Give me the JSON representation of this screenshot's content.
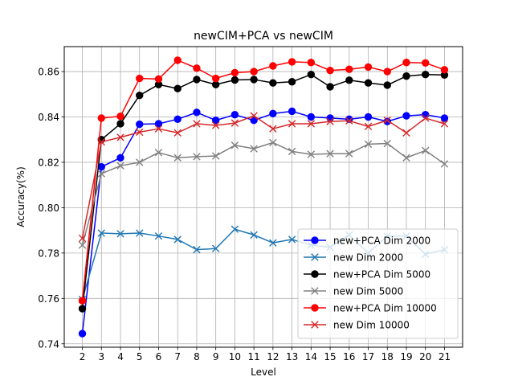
{
  "chart_data": {
    "type": "line",
    "title": "newCIM+PCA vs newCIM",
    "xlabel": "Level",
    "ylabel": "Accuracy(%)",
    "x": [
      2,
      3,
      4,
      5,
      6,
      7,
      8,
      9,
      10,
      11,
      12,
      13,
      14,
      15,
      16,
      17,
      18,
      19,
      20,
      21
    ],
    "xlim": [
      1.05,
      21.95
    ],
    "ylim": [
      0.7385,
      0.871
    ],
    "yticks": [
      0.74,
      0.76,
      0.78,
      0.8,
      0.82,
      0.84,
      0.86
    ],
    "ytick_labels": [
      "0.74",
      "0.76",
      "0.78",
      "0.80",
      "0.82",
      "0.84",
      "0.86"
    ],
    "grid": true,
    "legend_position": "lower-right",
    "series": [
      {
        "name": "new+PCA Dim 2000",
        "color": "#0000ff",
        "marker": "circle",
        "values": [
          0.7445,
          0.818,
          0.822,
          0.8368,
          0.837,
          0.839,
          0.842,
          0.8385,
          0.841,
          0.8385,
          0.8415,
          0.8425,
          0.84,
          0.8395,
          0.839,
          0.84,
          0.838,
          0.8405,
          0.841,
          0.8395
        ]
      },
      {
        "name": "new Dim 2000",
        "color": "#1f77b4",
        "marker": "x",
        "values": [
          0.7595,
          0.7888,
          0.7885,
          0.7888,
          0.7875,
          0.786,
          0.7815,
          0.782,
          0.7905,
          0.788,
          0.7845,
          0.786,
          0.7835,
          0.7825,
          0.788,
          0.78,
          0.7875,
          0.7875,
          0.7795,
          0.7815
        ]
      },
      {
        "name": "new+PCA Dim 5000",
        "color": "#000000",
        "marker": "circle",
        "values": [
          0.7555,
          0.83,
          0.837,
          0.8495,
          0.8543,
          0.8525,
          0.8565,
          0.8543,
          0.8563,
          0.8565,
          0.855,
          0.8555,
          0.8587,
          0.8533,
          0.8562,
          0.855,
          0.854,
          0.858,
          0.8587,
          0.8585
        ]
      },
      {
        "name": "new Dim 5000",
        "color": "#808080",
        "marker": "x",
        "values": [
          0.7835,
          0.815,
          0.8185,
          0.82,
          0.8243,
          0.822,
          0.8225,
          0.8228,
          0.8275,
          0.826,
          0.8287,
          0.8248,
          0.8235,
          0.8238,
          0.8238,
          0.828,
          0.8283,
          0.822,
          0.8252,
          0.8193
        ]
      },
      {
        "name": "new+PCA Dim 10000",
        "color": "#ff0000",
        "marker": "circle",
        "values": [
          0.759,
          0.8395,
          0.8403,
          0.857,
          0.8567,
          0.865,
          0.8615,
          0.857,
          0.8595,
          0.86,
          0.8625,
          0.8643,
          0.864,
          0.8605,
          0.861,
          0.862,
          0.86,
          0.864,
          0.8638,
          0.8608
        ]
      },
      {
        "name": "new Dim 10000",
        "color": "#d62728",
        "marker": "x",
        "values": [
          0.7865,
          0.829,
          0.831,
          0.8333,
          0.8348,
          0.833,
          0.837,
          0.8363,
          0.8373,
          0.8405,
          0.8348,
          0.837,
          0.837,
          0.838,
          0.8383,
          0.8358,
          0.8385,
          0.833,
          0.8395,
          0.837
        ]
      }
    ]
  }
}
